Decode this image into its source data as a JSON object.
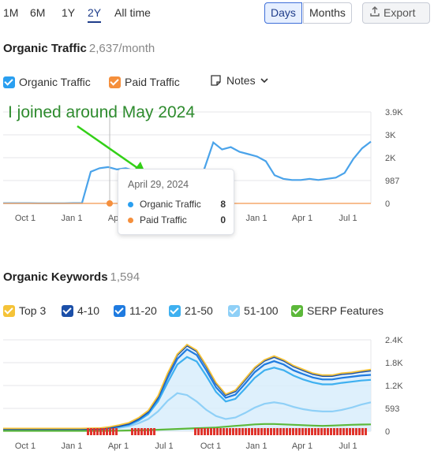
{
  "toolbar": {
    "ranges": [
      "1M",
      "6M",
      "1Y",
      "2Y",
      "All time"
    ],
    "active_range": "2Y",
    "granularity": [
      "Days",
      "Months"
    ],
    "active_granularity": "Days",
    "export_label": "Export"
  },
  "organic_traffic": {
    "title": "Organic Traffic",
    "value": "2,637/month",
    "legend": [
      {
        "label": "Organic Traffic",
        "color": "#2a9ff0"
      },
      {
        "label": "Paid Traffic",
        "color": "#f58f3c"
      }
    ],
    "notes_label": "Notes",
    "annotation": "I joined around May 2024",
    "tooltip": {
      "date": "April 29, 2024",
      "rows": [
        {
          "label": "Organic Traffic",
          "value": "8",
          "color": "#2a9ff0"
        },
        {
          "label": "Paid Traffic",
          "value": "0",
          "color": "#f58f3c"
        }
      ]
    }
  },
  "organic_keywords": {
    "title": "Organic Keywords",
    "value": "1,594",
    "legend": [
      {
        "label": "Top 3",
        "color": "#f5c338"
      },
      {
        "label": "4-10",
        "color": "#1b4fa8"
      },
      {
        "label": "11-20",
        "color": "#1f7be0"
      },
      {
        "label": "21-50",
        "color": "#3eb0f0"
      },
      {
        "label": "51-100",
        "color": "#8fd0f7"
      },
      {
        "label": "SERP Features",
        "color": "#5cb83a"
      }
    ]
  },
  "chart_data": [
    {
      "type": "line",
      "title": "Organic Traffic",
      "x_ticks": [
        "Oct 1",
        "Jan 1",
        "Apr 1",
        "Jul 1",
        "Oct 1",
        "Jan 1",
        "Apr 1",
        "Jul 1"
      ],
      "y_ticks": [
        "0",
        "987",
        "2K",
        "3K",
        "3.9K"
      ],
      "ylim": [
        0,
        3900
      ],
      "series": [
        {
          "name": "Organic Traffic",
          "values": [
            10,
            10,
            10,
            9,
            8,
            8,
            8,
            8,
            12,
            14,
            1350,
            1500,
            1550,
            1450,
            1500,
            1400,
            1350,
            1300,
            1250,
            1200,
            1150,
            1000,
            800,
            1500,
            2600,
            2300,
            2400,
            2200,
            2100,
            2000,
            1800,
            1200,
            1050,
            1000,
            1000,
            1050,
            1000,
            1050,
            1100,
            1300,
            1900,
            2350,
            2637
          ]
        },
        {
          "name": "Paid Traffic",
          "values": [
            0,
            0,
            0,
            0,
            0,
            0,
            0,
            0,
            0,
            0,
            0,
            0,
            0,
            0,
            0,
            0,
            0,
            0,
            0,
            0,
            0,
            0,
            0,
            0,
            0,
            0,
            0,
            0,
            0,
            0,
            0,
            0,
            0,
            0,
            0,
            0,
            0,
            0,
            0,
            0,
            0,
            0,
            0
          ]
        }
      ]
    },
    {
      "type": "area",
      "title": "Organic Keywords",
      "x_ticks": [
        "Oct 1",
        "Jan 1",
        "Apr 1",
        "Jul 1",
        "Oct 1",
        "Jan 1",
        "Apr 1",
        "Jul 1"
      ],
      "y_ticks": [
        "0",
        "593",
        "1.2K",
        "1.8K",
        "2.4K"
      ],
      "ylim": [
        0,
        2400
      ],
      "series": [
        {
          "name": "Top 3",
          "values": [
            30,
            30,
            30,
            30,
            30,
            30,
            30,
            30,
            30,
            30,
            30,
            40,
            40,
            40,
            45,
            50,
            50,
            50,
            55,
            55,
            55,
            55,
            55,
            55,
            55,
            55,
            50,
            50,
            50,
            50,
            50,
            50,
            50,
            50,
            50,
            50,
            50,
            50,
            50
          ]
        },
        {
          "name": "4-10",
          "values": [
            50,
            50,
            50,
            50,
            50,
            50,
            50,
            50,
            50,
            55,
            60,
            90,
            140,
            200,
            330,
            520,
            900,
            1500,
            2000,
            2250,
            2100,
            1700,
            1250,
            950,
            1050,
            1350,
            1650,
            1850,
            1950,
            1850,
            1700,
            1600,
            1500,
            1450,
            1450,
            1500,
            1520,
            1560,
            1594
          ]
        },
        {
          "name": "11-20",
          "values": [
            45,
            45,
            45,
            45,
            45,
            45,
            45,
            45,
            45,
            50,
            55,
            85,
            130,
            185,
            310,
            490,
            850,
            1400,
            1900,
            2150,
            2000,
            1600,
            1150,
            880,
            960,
            1250,
            1550,
            1750,
            1840,
            1750,
            1600,
            1500,
            1410,
            1360,
            1360,
            1400,
            1430,
            1460,
            1480
          ]
        },
        {
          "name": "21-50",
          "values": [
            40,
            40,
            40,
            40,
            40,
            40,
            40,
            40,
            40,
            45,
            50,
            75,
            115,
            165,
            280,
            450,
            780,
            1280,
            1750,
            1950,
            1830,
            1450,
            1030,
            780,
            850,
            1120,
            1400,
            1600,
            1670,
            1600,
            1460,
            1360,
            1280,
            1230,
            1230,
            1270,
            1300,
            1330,
            1350
          ]
        },
        {
          "name": "51-100",
          "values": [
            30,
            30,
            30,
            30,
            30,
            30,
            30,
            30,
            30,
            35,
            40,
            60,
            90,
            130,
            210,
            320,
            520,
            800,
            1000,
            950,
            780,
            560,
            400,
            320,
            360,
            480,
            620,
            720,
            760,
            720,
            640,
            580,
            540,
            520,
            520,
            560,
            620,
            700,
            760
          ]
        },
        {
          "name": "SERP Features",
          "values": [
            10,
            10,
            10,
            10,
            10,
            10,
            10,
            10,
            10,
            10,
            10,
            12,
            15,
            20,
            25,
            30,
            40,
            50,
            60,
            70,
            80,
            90,
            100,
            120,
            140,
            160,
            180,
            190,
            190,
            180,
            170,
            160,
            150,
            140,
            150,
            160,
            170,
            175,
            180
          ]
        }
      ]
    }
  ]
}
